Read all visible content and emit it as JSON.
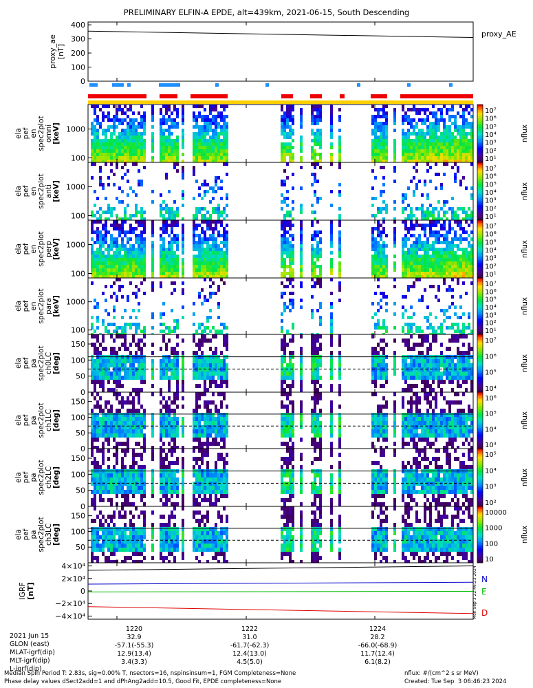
{
  "title": "PRELIMINARY ELFIN-A EPDE, alt=439km, 2021-06-15, South Descending",
  "time_ticks": [
    "1220",
    "1222",
    "1224"
  ],
  "panels": [
    {
      "ylabel": [
        "proxy_ae",
        "[nT]"
      ],
      "yticks": [
        "0",
        "100",
        "200",
        "300",
        "400"
      ],
      "ymin": 0,
      "ymax": 420,
      "legend": "proxy_AE",
      "series": [
        {
          "name": "proxy_AE",
          "color": "#000000",
          "t": [
            0,
            1
          ],
          "v": [
            355,
            310
          ]
        }
      ]
    },
    {
      "ylabel": [
        "ela",
        "pef",
        "en",
        "spec2plot",
        "omni",
        "[keV]"
      ],
      "yticks": [
        "100",
        "1000"
      ],
      "cbar": "flux",
      "cblabel": "nflux",
      "density": "high"
    },
    {
      "ylabel": [
        "ela",
        "pef",
        "en",
        "spec2plot",
        "anti",
        "[keV]"
      ],
      "yticks": [
        "100",
        "1000"
      ],
      "cbar": "flux",
      "cblabel": "nflux",
      "density": "low"
    },
    {
      "ylabel": [
        "ela",
        "pef",
        "en",
        "spec2plot",
        "perp",
        "[keV]"
      ],
      "yticks": [
        "100",
        "1000"
      ],
      "cbar": "flux",
      "cblabel": "nflux",
      "density": "high"
    },
    {
      "ylabel": [
        "ela",
        "pef",
        "en",
        "spec2plot",
        "para",
        "[keV]"
      ],
      "yticks": [
        "100",
        "1000"
      ],
      "cbar": "flux",
      "cblabel": "nflux",
      "density": "low"
    },
    {
      "ylabel": [
        "ela",
        "pef",
        "pa",
        "spec2plot",
        "ch0LC",
        "[deg]"
      ],
      "yticks": [
        "0",
        "50",
        "100",
        "150"
      ],
      "cbar": "flux6",
      "cblabel": "nflux",
      "density": "pa"
    },
    {
      "ylabel": [
        "ela",
        "pef",
        "pa",
        "spec2plot",
        "ch1LC",
        "[deg]"
      ],
      "yticks": [
        "0",
        "50",
        "100",
        "150"
      ],
      "cbar": "flux6b",
      "cblabel": "nflux",
      "density": "pa"
    },
    {
      "ylabel": [
        "ela",
        "pef",
        "pa",
        "spec2plot",
        "ch2LC",
        "[deg]"
      ],
      "yticks": [
        "0",
        "50",
        "100",
        "150"
      ],
      "cbar": "flux5",
      "cblabel": "nflux",
      "density": "pa"
    },
    {
      "ylabel": [
        "ela",
        "pef",
        "pa",
        "spec2plot",
        "ch3LC",
        "[deg]"
      ],
      "yticks": [
        "50",
        "100",
        "150"
      ],
      "cbar": "lin",
      "cblabel": "nflux",
      "density": "pa"
    },
    {
      "ylabel": [
        "IGRF",
        "[nT]"
      ],
      "yticks": [
        "−4×10⁴",
        "−2×10⁴",
        "0",
        "2×10⁴",
        "4×10⁴"
      ],
      "ymin": -45000,
      "ymax": 45000,
      "legend_items": [
        "N",
        "E",
        "D"
      ],
      "series": [
        {
          "name": "N",
          "color": "#0000cc",
          "t": [
            0,
            1
          ],
          "v": [
            11000,
            14000
          ]
        },
        {
          "name": "E",
          "color": "#00bb00",
          "t": [
            0,
            1
          ],
          "v": [
            -1500,
            -500
          ]
        },
        {
          "name": "D",
          "color": "#dd0000",
          "t": [
            0,
            1
          ],
          "v": [
            -25000,
            -36000
          ]
        },
        {
          "name": "total",
          "color": "#000000",
          "t": [
            0,
            1
          ],
          "v": [
            33000,
            40000
          ]
        }
      ]
    }
  ],
  "colorbars": {
    "flux": [
      "10⁷",
      "10⁶",
      "10⁵",
      "10⁴",
      "10³",
      "10²",
      "10¹"
    ],
    "flux6": [
      "10⁷",
      "10⁶",
      "10⁵",
      "10⁴"
    ],
    "flux6b": [
      "10⁶",
      "10⁵",
      "10⁴",
      "10³"
    ],
    "flux5": [
      "10⁵",
      "10⁴",
      "10³",
      "10²"
    ],
    "lin": [
      "10000",
      "1000",
      "100",
      "10"
    ]
  },
  "side_stamp": "Mon Sep  3 22:46:23 2024",
  "ephemeris": {
    "rows": [
      {
        "label": "2021 Jun 15",
        "vals": [
          "1220",
          "1222",
          "1224"
        ]
      },
      {
        "label": "GLON (east)",
        "vals": [
          "32.9",
          "31.0",
          "28.2"
        ]
      },
      {
        "label": "MLAT-igrf(dip)",
        "vals": [
          "-57.1(-55.3)",
          "-61.7(-62.3)",
          "-66.0(-68.9)"
        ]
      },
      {
        "label": "MLT-igrf(dip)",
        "vals": [
          "12.9(13.4)",
          "12.4(13.0)",
          "11.7(12.4)"
        ]
      },
      {
        "label": "L-igrf(dip)",
        "vals": [
          "3.4(3.3)",
          "4.5(5.0)",
          "6.1(8.2)"
        ]
      }
    ]
  },
  "footer": {
    "line1": "Median Spin Period T: 2.83s, sig=0.00% T, nsectors=16, nspinsinsum=1, FGM Completeness=None",
    "line2": "Phase delay values dSect2add=1 and dPhAng2add=10.5, Good Fit, EPDE completeness=None",
    "units": "nflux: #/(cm^2 s sr MeV)",
    "created": "Created: Tue Sep  3 06:46:23 2024"
  },
  "chart_data": {
    "type": "heatmap",
    "title": "PRELIMINARY ELFIN-A EPDE, alt=439km, 2021-06-15, South Descending",
    "x_ticks": [
      "1220",
      "1222",
      "1224"
    ],
    "series": [
      {
        "name": "proxy_AE",
        "values": [
          355,
          310
        ]
      },
      {
        "name": "N",
        "values": [
          11000,
          14000
        ]
      },
      {
        "name": "E",
        "values": [
          -1500,
          -500
        ]
      },
      {
        "name": "D",
        "values": [
          -25000,
          -36000
        ]
      }
    ]
  }
}
